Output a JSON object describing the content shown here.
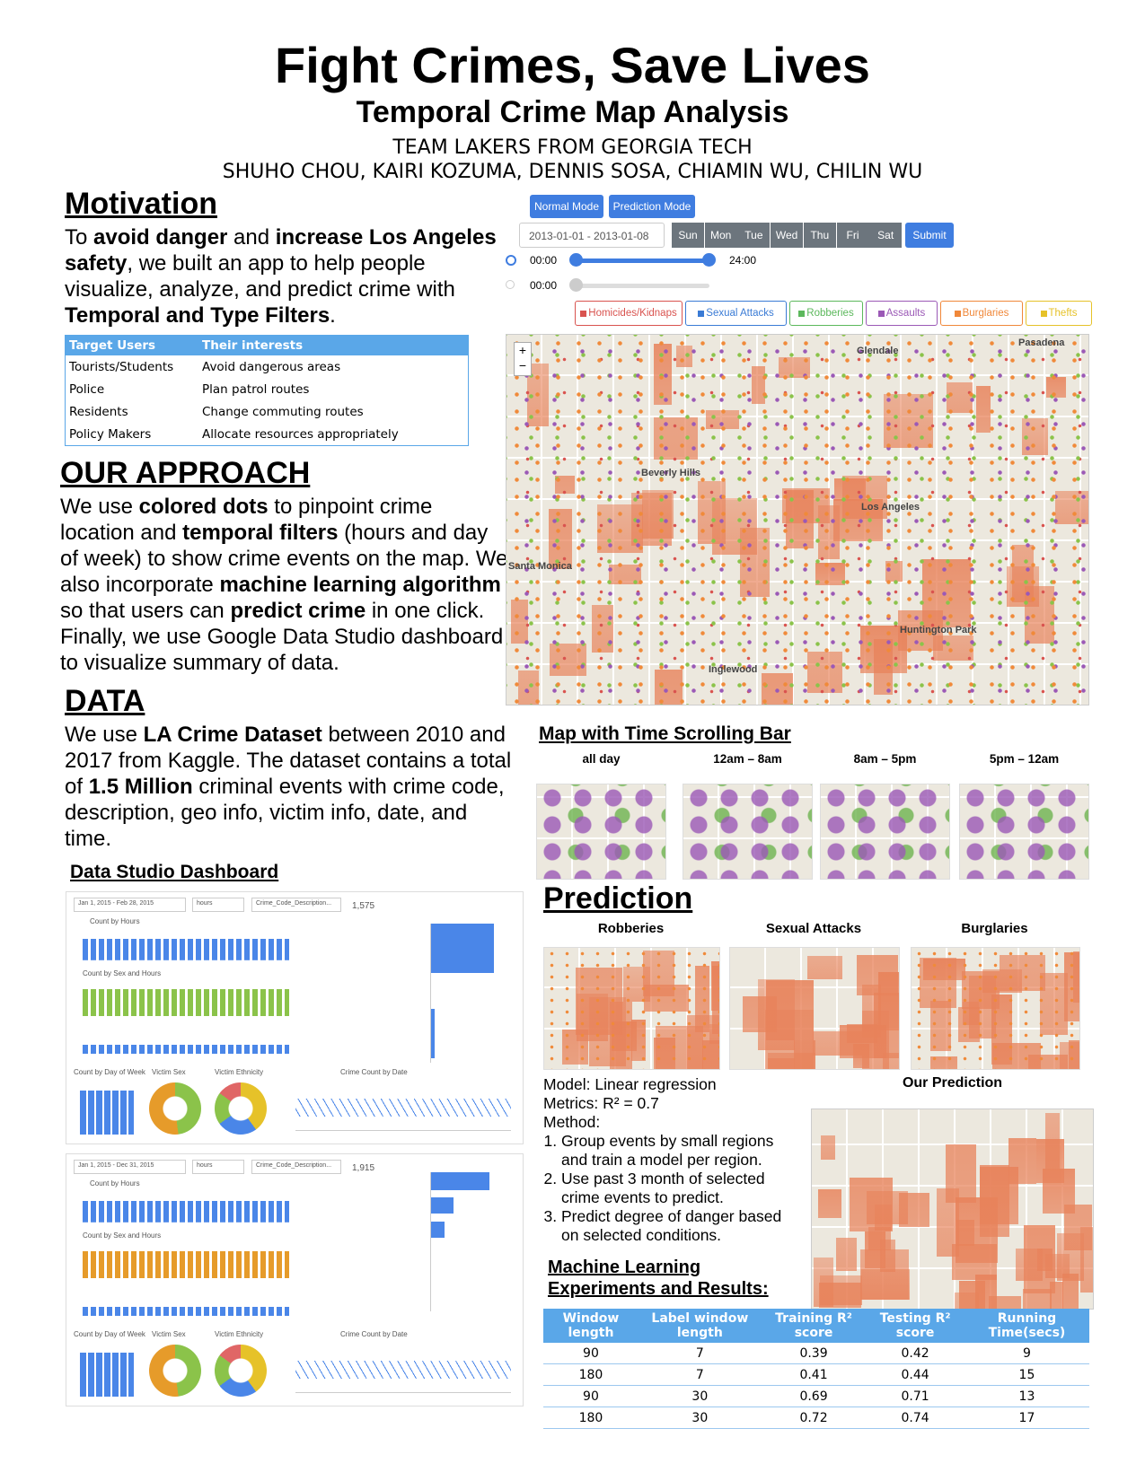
{
  "header": {
    "title": "Fight Crimes, Save Lives",
    "subtitle": "Temporal Crime Map Analysis",
    "team": "TEAM LAKERS FROM GEORGIA TECH",
    "authors": "SHUHO CHOU, KAIRI KOZUMA, DENNIS SOSA, CHIAMIN WU, CHILIN WU"
  },
  "motivation": {
    "heading": "Motivation",
    "paragraph": [
      {
        "text": "To "
      },
      {
        "text": "avoid danger",
        "bold": true
      },
      {
        "text": " and "
      },
      {
        "text": "increase Los Angeles safety",
        "bold": true
      },
      {
        "text": ", we built an app to help people visualize, analyze, and predict crime with "
      },
      {
        "text": "Temporal and Type Filters",
        "bold": true
      },
      {
        "text": "."
      }
    ]
  },
  "users_table": {
    "columns": [
      "Target Users",
      "Their interests"
    ],
    "rows": [
      [
        "Tourists/Students",
        "Avoid dangerous areas"
      ],
      [
        "Police",
        "Plan patrol routes"
      ],
      [
        "Residents",
        "Change commuting routes"
      ],
      [
        "Policy Makers",
        "Allocate resources appropriately"
      ]
    ]
  },
  "approach": {
    "heading": "OUR APPROACH",
    "paragraph": [
      {
        "text": "We use "
      },
      {
        "text": "colored dots",
        "bold": true
      },
      {
        "text": " to pinpoint crime location and "
      },
      {
        "text": "temporal filters",
        "bold": true
      },
      {
        "text": " (hours and day of week) to show crime events on the map. We also incorporate "
      },
      {
        "text": "machine learning algorithm",
        "bold": true
      },
      {
        "text": " so that users can "
      },
      {
        "text": "predict crime",
        "bold": true
      },
      {
        "text": " in one click. Finally, we use Google Data Studio dashboard to visualize summary of data."
      }
    ]
  },
  "data_section": {
    "heading": "DATA",
    "paragraph": [
      {
        "text": "We use "
      },
      {
        "text": "LA Crime Dataset",
        "bold": true
      },
      {
        "text": " between 2010 and 2017 from Kaggle. The dataset contains a total of "
      },
      {
        "text": "1.5 Million",
        "bold": true
      },
      {
        "text": " criminal events with crime code, description, geo info, victim info, date, and time."
      }
    ]
  },
  "dashboards": {
    "heading": "Data Studio Dashboard",
    "panels": [
      {
        "date_range": "Jan 1, 2015 - Feb 28, 2015",
        "dropdowns": [
          "hours",
          "Crime_Code_Description..."
        ],
        "total": "1,575",
        "titles": [
          "Count by Hours",
          "Count by Sex and Hours",
          "Count by Day of Week",
          "Victim Sex",
          "Victim Ethnicity",
          "Crime Count by Date"
        ]
      },
      {
        "date_range": "Jan 1, 2015 - Dec 31, 2015",
        "dropdowns": [
          "hours",
          "Crime_Code_Description..."
        ],
        "total": "1,915",
        "titles": [
          "Count by Hours",
          "Count by Sex and Hours",
          "Count by Day of Week",
          "Victim Sex",
          "Victim Ethnicity",
          "Crime Count by Date"
        ]
      }
    ]
  },
  "app": {
    "modes": [
      "Normal Mode",
      "Prediction Mode"
    ],
    "date_range": "2013-01-01 - 2013-01-08",
    "days": [
      "Sun",
      "Mon",
      "Tue",
      "Wed",
      "Thu",
      "Fri",
      "Sat"
    ],
    "submit": "Submit",
    "times": [
      "00:00",
      "24:00",
      "00:00"
    ],
    "filters": [
      {
        "label": "Homicides/Kidnaps",
        "color": "#d9534f"
      },
      {
        "label": "Sexual Attacks",
        "color": "#3a7bd5"
      },
      {
        "label": "Robberies",
        "color": "#5cb85c"
      },
      {
        "label": "Assaults",
        "color": "#9b59b6"
      },
      {
        "label": "Burglaries",
        "color": "#f0883a"
      },
      {
        "label": "Thefts",
        "color": "#e6c229"
      }
    ],
    "map_labels": [
      "Glendale",
      "Pasadena",
      "Beverly Hills",
      "Los Angeles",
      "Santa Monica",
      "Huntington Park",
      "Inglewood"
    ]
  },
  "time_scroll": {
    "heading": "Map with Time Scrolling Bar",
    "labels": [
      "all day",
      "12am – 8am",
      "8am – 5pm",
      "5pm – 12am"
    ]
  },
  "prediction": {
    "heading": "Prediction",
    "labels": [
      "Robberies",
      "Sexual Attacks",
      "Burglaries"
    ],
    "model_lines": [
      "Model: Linear regression",
      "Metrics: R² = 0.7",
      "Method:"
    ],
    "method_steps": [
      "Group events by small regions and train a model per region.",
      "Use past 3 month of selected crime events to predict.",
      "Predict degree of danger based on selected conditions."
    ],
    "our_prediction": "Our Prediction"
  },
  "ml": {
    "heading_lines": [
      "Machine Learning",
      "Experiments and Results:"
    ],
    "table": {
      "columns": [
        "Window length",
        "Label window length",
        "Training R² score",
        "Testing R² score",
        "Running Time(secs)"
      ],
      "rows": [
        [
          90,
          7,
          0.39,
          0.42,
          9
        ],
        [
          180,
          7,
          0.41,
          0.44,
          15
        ],
        [
          90,
          30,
          0.69,
          0.71,
          13
        ],
        [
          180,
          30,
          0.72,
          0.74,
          17
        ]
      ]
    }
  }
}
